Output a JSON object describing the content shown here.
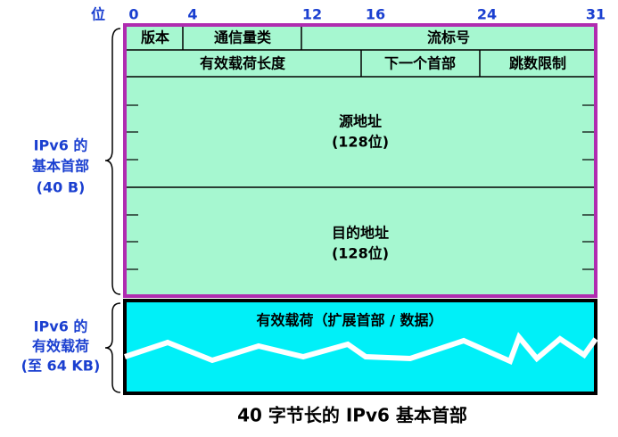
{
  "bit_ruler": {
    "unit": "位",
    "marks": [
      0,
      4,
      12,
      16,
      24,
      31
    ]
  },
  "header": {
    "row1": [
      "版本",
      "通信量类",
      "流标号"
    ],
    "row2": [
      "有效载荷长度",
      "下一个首部",
      "跳数限制"
    ],
    "source": {
      "label": "源地址",
      "size": "(128位)"
    },
    "destination": {
      "label": "目的地址",
      "size": "(128位)"
    },
    "side_label": [
      "IPv6 的",
      "基本首部",
      "(40 B)"
    ]
  },
  "payload": {
    "label": "有效载荷（扩展首部 / 数据）",
    "side_label": [
      "IPv6 的",
      "有效载荷",
      "(至 64 KB)"
    ]
  },
  "caption": "40 字节长的 IPv6 基本首部"
}
